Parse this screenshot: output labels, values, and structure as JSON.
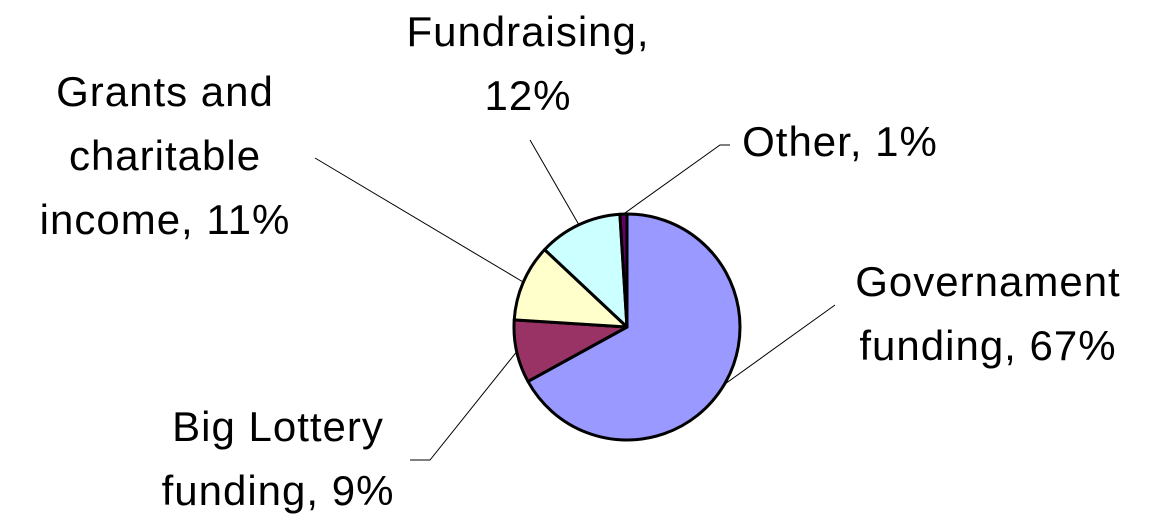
{
  "chart_data": {
    "type": "pie",
    "categories": [
      "Governament funding",
      "Big Lottery funding",
      "Grants and charitable income",
      "Fundraising",
      "Other"
    ],
    "values": [
      67,
      9,
      11,
      12,
      1
    ],
    "value_labels": [
      "Governament funding, 67%",
      "Big Lottery funding, 9%",
      "Grants and charitable income, 11%",
      "Fundraising, 12%",
      "Other, 1%"
    ],
    "colors": [
      "#9999ff",
      "#993366",
      "#ffffcc",
      "#ccffff",
      "#660066"
    ]
  }
}
